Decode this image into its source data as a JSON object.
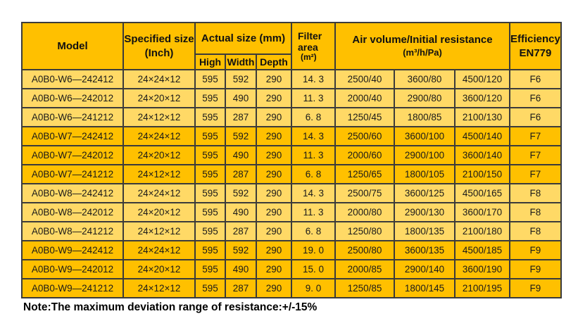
{
  "colors": {
    "header_bg": "#FFC000",
    "light_row": "#FFD966",
    "dark_row": "#FFC000",
    "border": "#3B3B3B",
    "text": "#1A1A1A"
  },
  "table": {
    "header": {
      "model": "Model",
      "specified_size": "Specified size",
      "specified_size_unit": "(Inch)",
      "actual_size": "Actual size (mm)",
      "high": "High",
      "width": "Width",
      "depth": "Depth",
      "filter_area_line1": "Filter",
      "filter_area_line2": "area",
      "filter_area_unit": "(m²)",
      "air_volume": "Air volume/Initial resistance",
      "air_volume_unit": "(m³/h/Pa)",
      "efficiency": "Efficiency",
      "efficiency_std": "EN779"
    },
    "rows": [
      {
        "model": "A0B0-W6—242412",
        "specified": "24×24×12",
        "high": "595",
        "width": "592",
        "depth": "290",
        "area": "14. 3",
        "air1": "2500/40",
        "air2": "3600/80",
        "air3": "4500/120",
        "eff": "F6",
        "tone": "light"
      },
      {
        "model": "A0B0-W6—242012",
        "specified": "24×20×12",
        "high": "595",
        "width": "490",
        "depth": "290",
        "area": "11. 3",
        "air1": "2000/40",
        "air2": "2900/80",
        "air3": "3600/120",
        "eff": "F6",
        "tone": "light"
      },
      {
        "model": "A0B0-W6—241212",
        "specified": "24×12×12",
        "high": "595",
        "width": "287",
        "depth": "290",
        "area": "6. 8",
        "air1": "1250/45",
        "air2": "1800/85",
        "air3": "2100/130",
        "eff": "F6",
        "tone": "light"
      },
      {
        "model": "A0B0-W7—242412",
        "specified": "24×24×12",
        "high": "595",
        "width": "592",
        "depth": "290",
        "area": "14. 3",
        "air1": "2500/60",
        "air2": "3600/100",
        "air3": "4500/140",
        "eff": "F7",
        "tone": "dark"
      },
      {
        "model": "A0B0-W7—242012",
        "specified": "24×20×12",
        "high": "595",
        "width": "490",
        "depth": "290",
        "area": "11. 3",
        "air1": "2000/60",
        "air2": "2900/100",
        "air3": "3600/140",
        "eff": "F7",
        "tone": "dark"
      },
      {
        "model": "A0B0-W7—241212",
        "specified": "24×12×12",
        "high": "595",
        "width": "287",
        "depth": "290",
        "area": "6. 8",
        "air1": "1250/65",
        "air2": "1800/105",
        "air3": "2100/150",
        "eff": "F7",
        "tone": "dark"
      },
      {
        "model": "A0B0-W8—242412",
        "specified": "24×24×12",
        "high": "595",
        "width": "592",
        "depth": "290",
        "area": "14. 3",
        "air1": "2500/75",
        "air2": "3600/125",
        "air3": "4500/165",
        "eff": "F8",
        "tone": "light"
      },
      {
        "model": "A0B0-W8—242012",
        "specified": "24×20×12",
        "high": "595",
        "width": "490",
        "depth": "290",
        "area": "11. 3",
        "air1": "2000/80",
        "air2": "2900/130",
        "air3": "3600/170",
        "eff": "F8",
        "tone": "light"
      },
      {
        "model": "A0B0-W8—241212",
        "specified": "24×12×12",
        "high": "595",
        "width": "287",
        "depth": "290",
        "area": "6. 8",
        "air1": "1250/80",
        "air2": "1800/135",
        "air3": "2100/180",
        "eff": "F8",
        "tone": "light"
      },
      {
        "model": "A0B0-W9—242412",
        "specified": "24×24×12",
        "high": "595",
        "width": "592",
        "depth": "290",
        "area": "19. 0",
        "air1": "2500/80",
        "air2": "3600/135",
        "air3": "4500/185",
        "eff": "F9",
        "tone": "dark"
      },
      {
        "model": "A0B0-W9—242012",
        "specified": "24×20×12",
        "high": "595",
        "width": "490",
        "depth": "290",
        "area": "15. 0",
        "air1": "2000/85",
        "air2": "2900/140",
        "air3": "3600/190",
        "eff": "F9",
        "tone": "dark"
      },
      {
        "model": "A0B0-W9—241212",
        "specified": "24×12×12",
        "high": "595",
        "width": "287",
        "depth": "290",
        "area": "9. 0",
        "air1": "1250/85",
        "air2": "1800/145",
        "air3": "2100/195",
        "eff": "F9",
        "tone": "dark"
      }
    ]
  },
  "note": "Note:The maximum deviation range of resistance:+/-15%"
}
